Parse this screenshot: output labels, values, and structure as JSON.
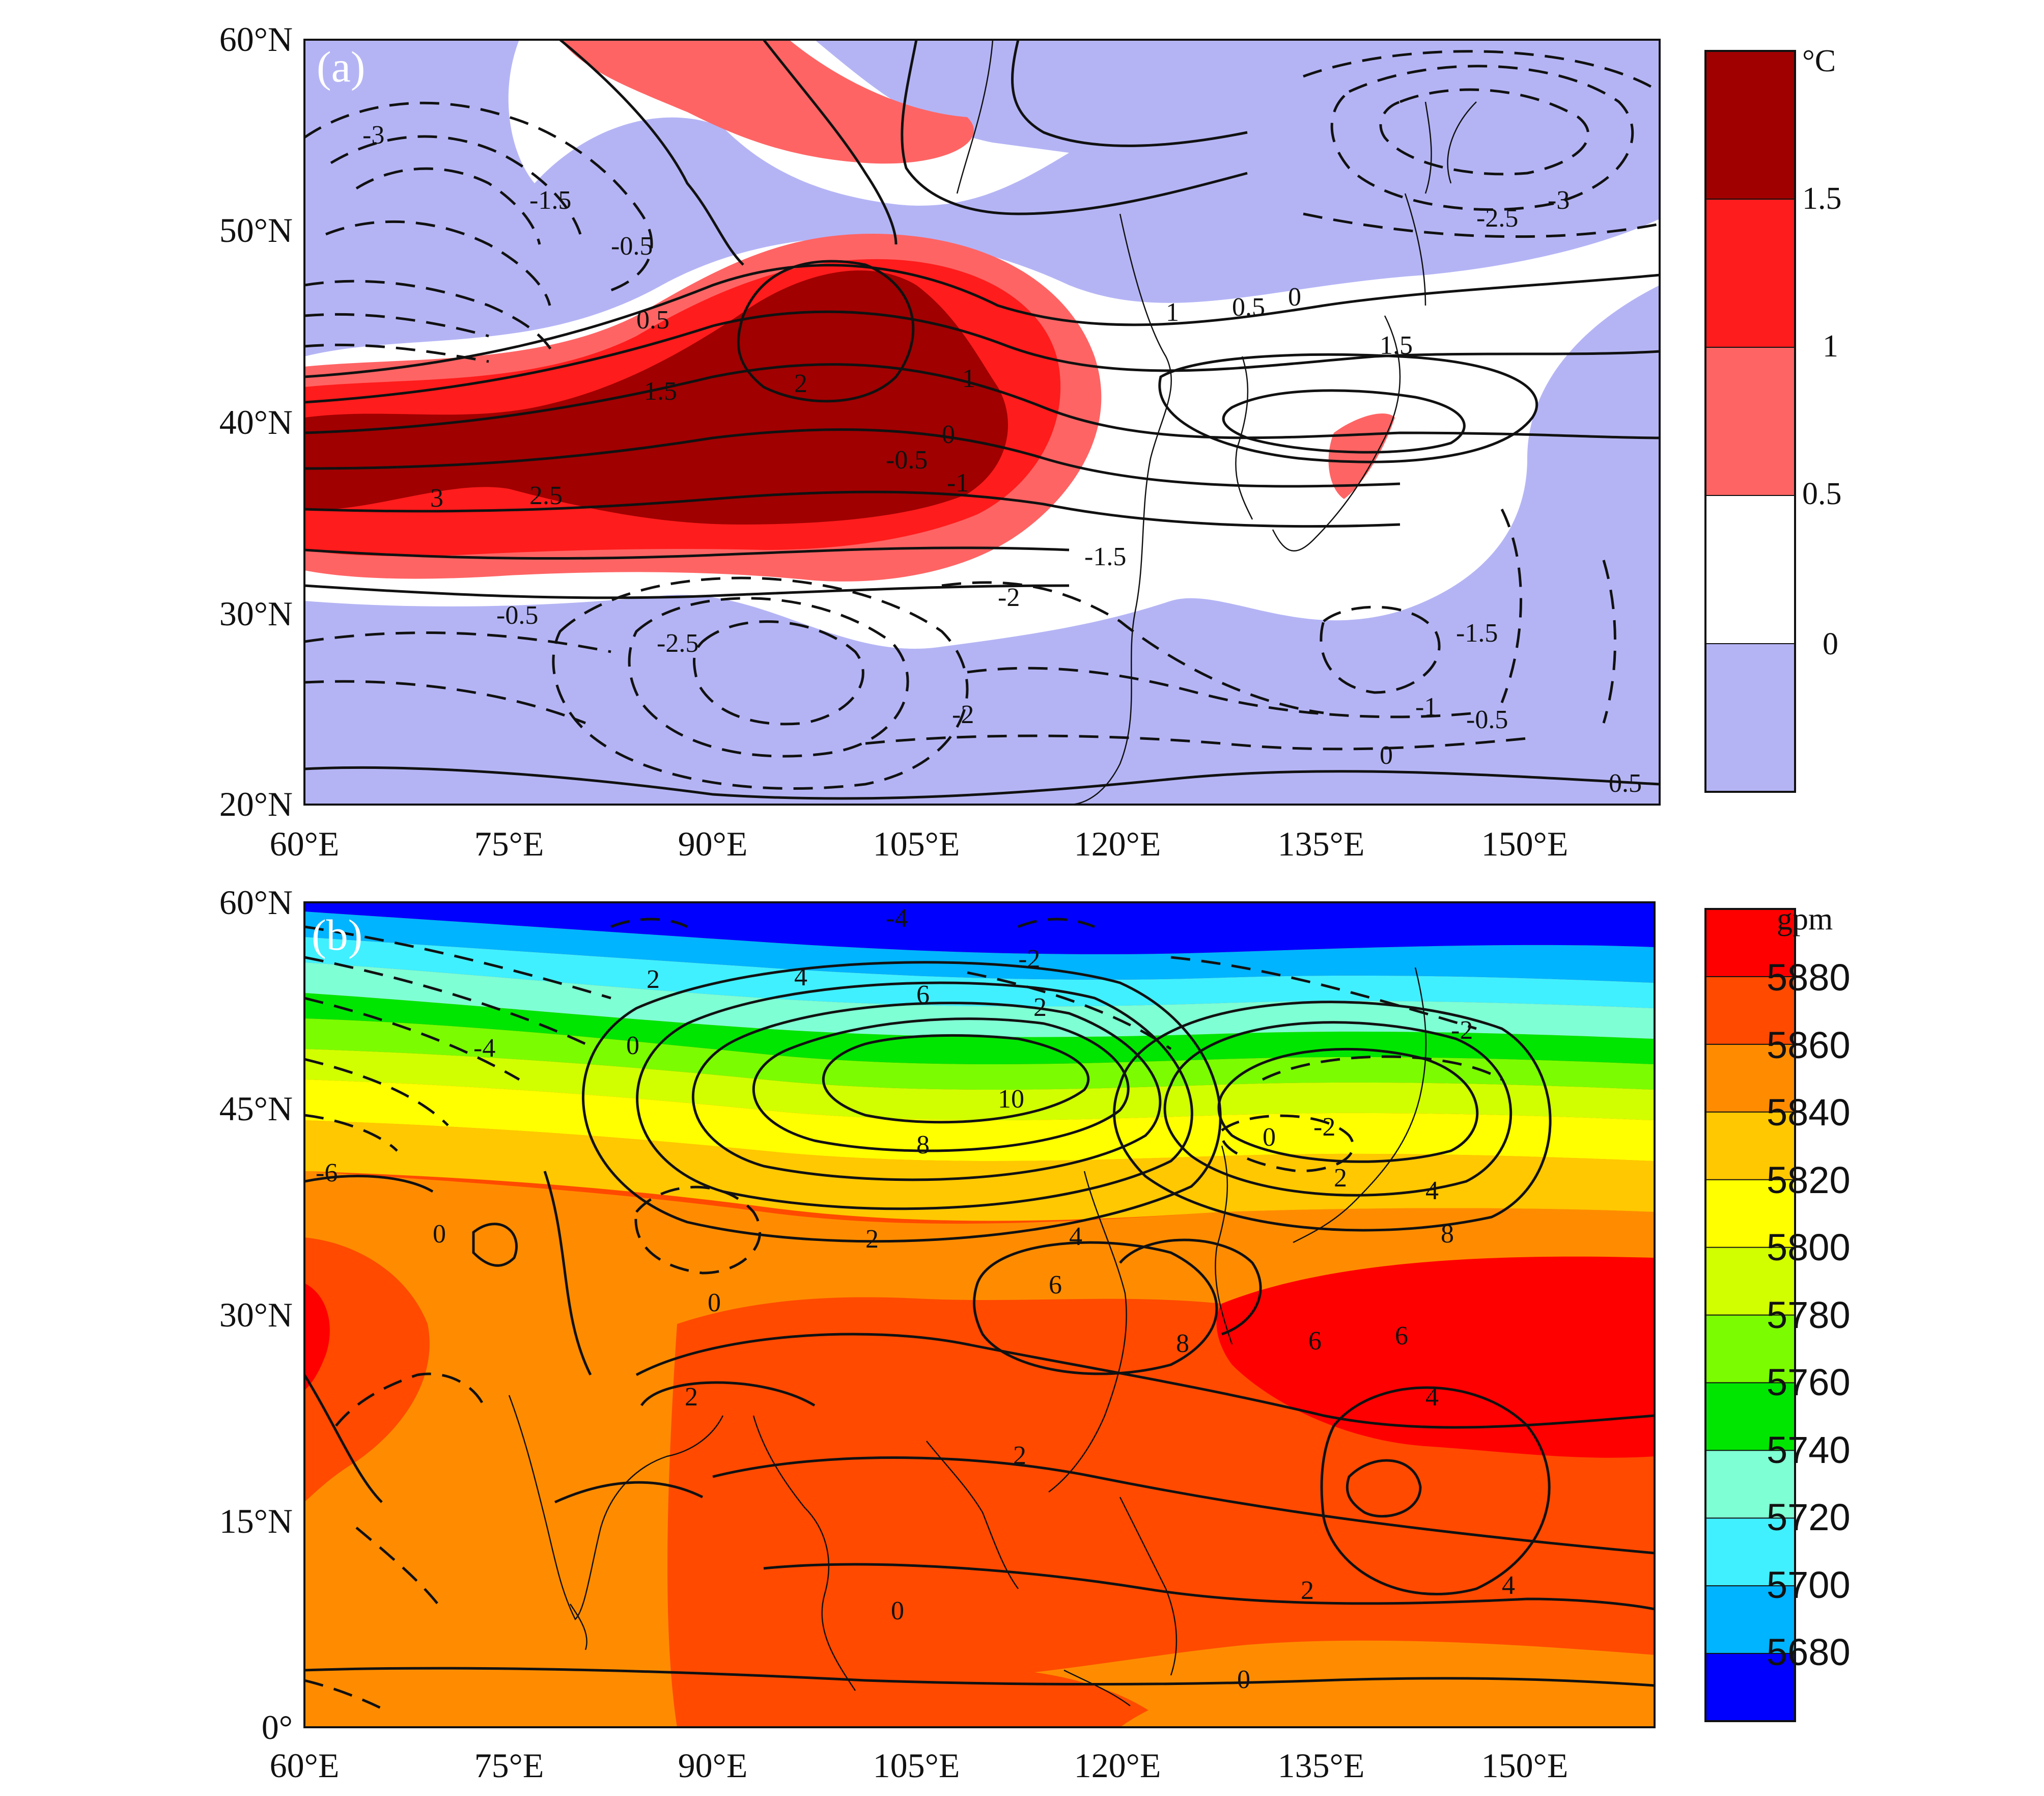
{
  "panel_a": {
    "label": "(a)",
    "colorbar_unit": "°C",
    "colorbar": {
      "levels": [
        "1.5",
        "1",
        "0.5",
        "0"
      ],
      "colors": [
        "#a00000",
        "#ff1c1c",
        "#ff6464",
        "#ffffff",
        "#b4b4f5"
      ]
    },
    "lat_ticks": [
      "60°N",
      "50°N",
      "40°N",
      "30°N",
      "20°N"
    ],
    "lon_ticks": [
      "60°E",
      "75°E",
      "90°E",
      "105°E",
      "120°E",
      "135°E",
      "150°E"
    ],
    "contour_labels": [
      "-3",
      "-1.5",
      "-0.5",
      "0.5",
      "1.5",
      "2",
      "2.5",
      "3",
      "1",
      "0",
      "-0.5",
      "-1",
      "-2",
      "-2.5",
      "-1.5",
      "-0.5",
      "0",
      "0.5",
      "1",
      "1.5",
      "-3",
      "-2.5",
      "-1.5",
      "-1",
      "-0.5",
      "0",
      "0.5",
      "-2"
    ]
  },
  "panel_b": {
    "label": "(b)",
    "colorbar_unit": "gpm",
    "colorbar": {
      "levels": [
        "5880",
        "5860",
        "5840",
        "5820",
        "5800",
        "5780",
        "5760",
        "5740",
        "5720",
        "5700",
        "5680"
      ],
      "colors": [
        "#ff0000",
        "#ff4a00",
        "#ff8c00",
        "#ffc800",
        "#ffff00",
        "#d2ff00",
        "#7cfc00",
        "#00e600",
        "#7fffd4",
        "#40f0ff",
        "#00b4ff",
        "#0000ff"
      ]
    },
    "lat_ticks": [
      "60°N",
      "45°N",
      "30°N",
      "15°N",
      "0°"
    ],
    "lon_ticks": [
      "60°E",
      "75°E",
      "90°E",
      "105°E",
      "120°E",
      "135°E",
      "150°E"
    ],
    "contour_labels": [
      "-4",
      "2",
      "0",
      "4",
      "6",
      "8",
      "10",
      "-2",
      "2",
      "-4",
      "-6",
      "0",
      "2",
      "0",
      "2",
      "4",
      "6",
      "8",
      "6",
      "4",
      "2",
      "0",
      "-2",
      "4",
      "8",
      "6",
      "4",
      "2",
      "0",
      "-2",
      "2",
      "0"
    ]
  }
}
